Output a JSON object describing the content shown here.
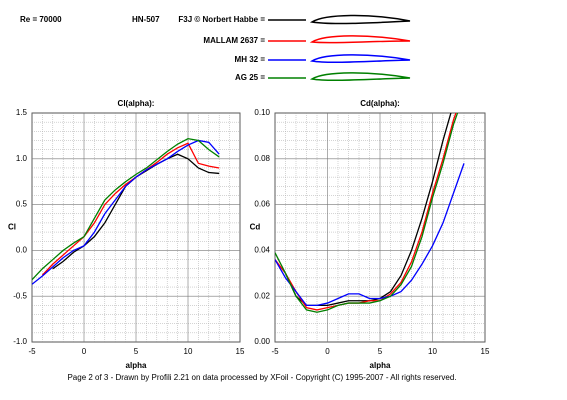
{
  "header": {
    "re": "Re = 70000",
    "airfoil": "HN-507"
  },
  "footer": "Page 2 of 3   -   Drawn by Profili 2.21 on data processed by  XFoil - Copyright (C) 1995-2007 - All rights reserved.",
  "chart_data": [
    {
      "type": "line",
      "title": "Cl(alpha):",
      "x_label": "alpha",
      "y_label": "Cl",
      "x": [
        -5,
        -4,
        -3,
        -2,
        -1,
        0,
        1,
        2,
        3,
        4,
        5,
        6,
        7,
        8,
        9,
        10,
        11,
        12,
        13
      ],
      "xlim": [
        -5,
        15
      ],
      "xticks": [
        -5,
        0,
        5,
        10,
        15
      ],
      "ylim": [
        -1.0,
        1.5
      ],
      "yticks": [
        {
          "value": 1.5,
          "label": "1.5"
        },
        {
          "value": 1.0,
          "label": "1.0"
        },
        {
          "value": 0.5,
          "label": "0.5"
        },
        {
          "value": 0.0,
          "label": "0.0"
        },
        {
          "value": -0.5,
          "label": "-0.5"
        },
        {
          "value": -1.0,
          "label": "-1.0"
        }
      ],
      "grid": true,
      "series": [
        {
          "name": "F3J © Norbert Habbe =",
          "color": "#000000",
          "values": [
            null,
            null,
            -0.2,
            -0.12,
            -0.02,
            0.05,
            0.15,
            0.3,
            0.5,
            0.7,
            0.8,
            0.87,
            0.94,
            1.0,
            1.05,
            1.0,
            0.9,
            0.85,
            0.84
          ]
        },
        {
          "name": "MALLAM 2637 =",
          "color": "#ff0000",
          "values": [
            null,
            -0.27,
            -0.15,
            -0.05,
            0.05,
            0.15,
            0.3,
            0.5,
            0.62,
            0.72,
            0.8,
            0.88,
            0.96,
            1.05,
            1.12,
            1.17,
            0.95,
            0.92,
            0.9
          ]
        },
        {
          "name": "MH 32 =",
          "color": "#0000ff",
          "values": [
            -0.37,
            -0.28,
            -0.18,
            -0.08,
            0.0,
            0.05,
            0.2,
            0.4,
            0.55,
            0.7,
            0.8,
            0.88,
            0.94,
            1.0,
            1.08,
            1.15,
            1.2,
            1.18,
            1.05
          ]
        },
        {
          "name": "AG 25 =",
          "color": "#008000",
          "values": [
            -0.32,
            -0.2,
            -0.1,
            0.0,
            0.08,
            0.15,
            0.35,
            0.55,
            0.66,
            0.75,
            0.83,
            0.9,
            0.99,
            1.08,
            1.16,
            1.22,
            1.2,
            1.1,
            1.02
          ]
        }
      ]
    },
    {
      "type": "line",
      "title": "Cd(alpha):",
      "x_label": "alpha",
      "y_label": "Cd",
      "x": [
        -5,
        -4,
        -3,
        -2,
        -1,
        0,
        1,
        2,
        3,
        4,
        5,
        6,
        7,
        8,
        9,
        10,
        11,
        12,
        13
      ],
      "xlim": [
        -5,
        15
      ],
      "xticks": [
        -5,
        0,
        5,
        10,
        15
      ],
      "ylim": [
        0.0,
        0.1
      ],
      "yticks": [
        {
          "value": 0.1,
          "label": "0.10"
        },
        {
          "value": 0.08,
          "label": "0.08"
        },
        {
          "value": 0.06,
          "label": "0.06"
        },
        {
          "value": 0.04,
          "label": "0.04"
        },
        {
          "value": 0.02,
          "label": "0.02"
        },
        {
          "value": 0.0,
          "label": "0.00"
        }
      ],
      "grid": true,
      "series": [
        {
          "color": "#000000",
          "values": [
            null,
            0.03,
            0.02,
            0.016,
            0.016,
            0.016,
            0.017,
            0.018,
            0.018,
            0.018,
            0.019,
            0.022,
            0.029,
            0.04,
            0.054,
            0.07,
            0.088,
            0.104,
            null
          ]
        },
        {
          "color": "#ff0000",
          "values": [
            0.036,
            0.03,
            0.022,
            0.015,
            0.014,
            0.015,
            0.016,
            0.017,
            0.017,
            0.018,
            0.018,
            0.021,
            0.026,
            0.035,
            0.048,
            0.065,
            0.08,
            0.097,
            0.11
          ]
        },
        {
          "color": "#0000ff",
          "values": [
            0.036,
            0.028,
            0.022,
            0.016,
            0.016,
            0.017,
            0.019,
            0.021,
            0.021,
            0.019,
            0.019,
            0.02,
            0.022,
            0.027,
            0.034,
            0.042,
            0.052,
            0.065,
            0.078
          ]
        },
        {
          "color": "#008000",
          "values": [
            0.039,
            0.03,
            0.02,
            0.014,
            0.013,
            0.014,
            0.016,
            0.017,
            0.017,
            0.017,
            0.018,
            0.02,
            0.025,
            0.033,
            0.046,
            0.063,
            0.078,
            0.095,
            0.108
          ]
        }
      ]
    }
  ]
}
